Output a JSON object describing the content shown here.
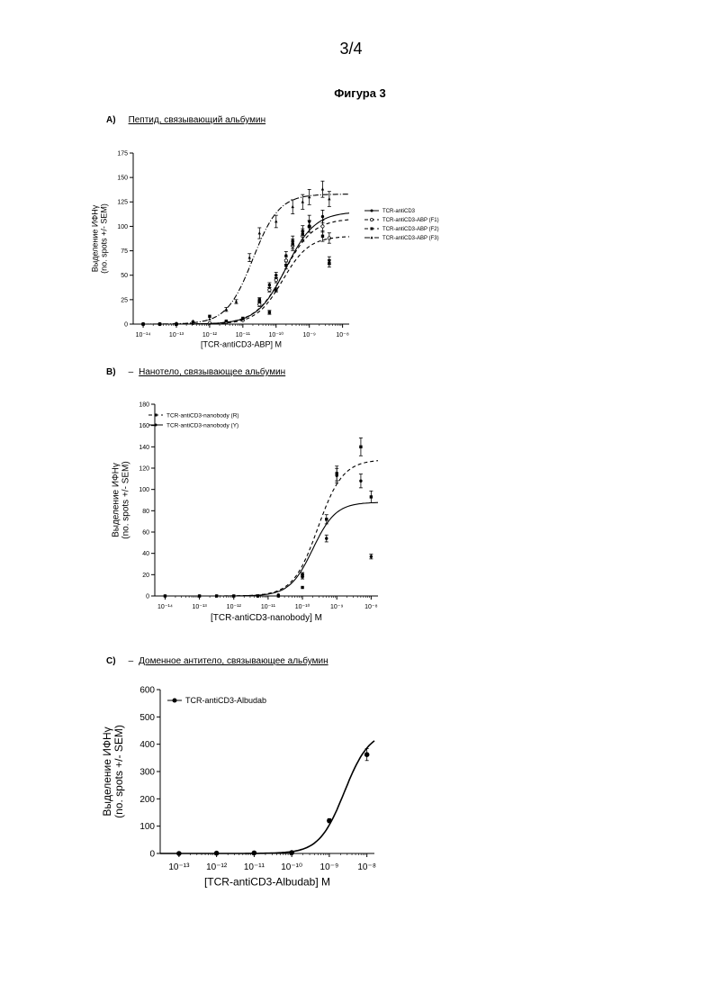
{
  "page_number": "3/4",
  "figure_title": "Фигура 3",
  "chart_data": [
    {
      "panel": "A)",
      "panel_title": "Пептид, связывающий альбумин",
      "type": "scatter",
      "xscale": "log",
      "xlabel": "[TCR-antiCD3-ABP] M",
      "ylabel": "Выделение ИФНγ",
      "ylabel2": "(no. spots +/- SEM)",
      "xlim_exp": [
        -14.3,
        -7.8
      ],
      "ylim": [
        0,
        175
      ],
      "yticks": [
        "0",
        "25",
        "50",
        "75",
        "100",
        "125",
        "150",
        "175"
      ],
      "xticks": [
        {
          "exp": -14,
          "label": "10⁻¹⁴"
        },
        {
          "exp": -13,
          "label": "10⁻¹³"
        },
        {
          "exp": -12,
          "label": "10⁻¹²"
        },
        {
          "exp": -11,
          "label": "10⁻¹¹"
        },
        {
          "exp": -10,
          "label": "10⁻¹⁰"
        },
        {
          "exp": -9,
          "label": "10⁻⁹"
        },
        {
          "exp": -8,
          "label": "10⁻⁸"
        }
      ],
      "legend_position": "right",
      "series": [
        {
          "name": "TCR-antiCD3",
          "style": "solid",
          "marker": "dot",
          "bottom": 0,
          "top": 115,
          "logEC50": -9.7,
          "hill": 1.0,
          "points": [
            [
              -14,
              0
            ],
            [
              -13.5,
              0
            ],
            [
              -13,
              0
            ],
            [
              -12.5,
              1
            ],
            [
              -12,
              1
            ],
            [
              -11.5,
              3
            ],
            [
              -11,
              5
            ],
            [
              -10.5,
              22
            ],
            [
              -10.2,
              40
            ],
            [
              -10,
              50
            ],
            [
              -9.7,
              70
            ],
            [
              -9.5,
              85
            ],
            [
              -9.2,
              95
            ],
            [
              -9,
              105
            ],
            [
              -8.6,
              110
            ],
            [
              -8.4,
              65
            ]
          ]
        },
        {
          "name": "TCR-antiCD3-ABP (F1)",
          "style": "dashed",
          "marker": "circle",
          "bottom": 0,
          "top": 108,
          "logEC50": -9.75,
          "hill": 1.0,
          "points": [
            [
              -14,
              0
            ],
            [
              -13.5,
              0
            ],
            [
              -13,
              0
            ],
            [
              -12.5,
              1
            ],
            [
              -12,
              1
            ],
            [
              -11.5,
              2
            ],
            [
              -11,
              4
            ],
            [
              -10.5,
              20
            ],
            [
              -10.2,
              35
            ],
            [
              -10,
              45
            ],
            [
              -9.7,
              65
            ],
            [
              -9.5,
              80
            ],
            [
              -9.2,
              90
            ],
            [
              -9,
              100
            ],
            [
              -8.6,
              100
            ],
            [
              -8.4,
              88
            ]
          ]
        },
        {
          "name": "TCR-antiCD3-ABP (F2)",
          "style": "dashed",
          "marker": "square",
          "bottom": 0,
          "top": 90,
          "logEC50": -9.8,
          "hill": 1.1,
          "points": [
            [
              -14,
              0
            ],
            [
              -13.5,
              0
            ],
            [
              -13,
              0
            ],
            [
              -12.5,
              2
            ],
            [
              -12,
              8
            ],
            [
              -11.5,
              3
            ],
            [
              -11,
              6
            ],
            [
              -10.5,
              25
            ],
            [
              -10.2,
              12
            ],
            [
              -10,
              35
            ],
            [
              -9.7,
              60
            ],
            [
              -9.5,
              82
            ],
            [
              -9.2,
              92
            ],
            [
              -9,
              100
            ],
            [
              -8.6,
              90
            ],
            [
              -8.4,
              62
            ]
          ]
        },
        {
          "name": "TCR-antiCD3-ABP (F3)",
          "style": "dashdot",
          "marker": "triangle",
          "bottom": 0,
          "top": 133,
          "logEC50": -10.7,
          "hill": 1.1,
          "points": [
            [
              -14,
              0
            ],
            [
              -13.5,
              0
            ],
            [
              -13,
              1
            ],
            [
              -12.5,
              3
            ],
            [
              -12,
              5
            ],
            [
              -11.5,
              15
            ],
            [
              -11.2,
              23
            ],
            [
              -10.8,
              68
            ],
            [
              -10.5,
              93
            ],
            [
              -10,
              105
            ],
            [
              -9.5,
              120
            ],
            [
              -9.2,
              125
            ],
            [
              -9,
              130
            ],
            [
              -8.6,
              138
            ],
            [
              -8.4,
              128
            ]
          ]
        }
      ]
    },
    {
      "panel": "B)",
      "panel_title": "Нанотело, связывающее альбумин",
      "type": "scatter",
      "xscale": "log",
      "xlabel": "[TCR-antiCD3-nanobody] M",
      "ylabel": "Выделение ИФНγ",
      "ylabel2": "(no. spots +/- SEM)",
      "xlim_exp": [
        -14.3,
        -7.8
      ],
      "ylim": [
        0,
        180
      ],
      "yticks": [
        "0",
        "20",
        "40",
        "60",
        "80",
        "100",
        "120",
        "140",
        "160",
        "180"
      ],
      "xticks": [
        {
          "exp": -14,
          "label": "10⁻¹⁴"
        },
        {
          "exp": -13,
          "label": "10⁻¹³"
        },
        {
          "exp": -12,
          "label": "10⁻¹²"
        },
        {
          "exp": -11,
          "label": "10⁻¹¹"
        },
        {
          "exp": -10,
          "label": "10⁻¹⁰"
        },
        {
          "exp": -9,
          "label": "10⁻⁹"
        },
        {
          "exp": -8,
          "label": "10⁻⁸"
        }
      ],
      "legend_position": "top-left",
      "series": [
        {
          "name": "TCR-antiCD3-nanobody (R)",
          "style": "dashed",
          "marker": "square",
          "bottom": 0,
          "top": 128,
          "logEC50": -9.55,
          "hill": 1.2,
          "points": [
            [
              -14,
              0
            ],
            [
              -13,
              0
            ],
            [
              -12.5,
              0
            ],
            [
              -12,
              0
            ],
            [
              -11.3,
              0
            ],
            [
              -10.7,
              0
            ],
            [
              -10,
              20
            ],
            [
              -10,
              8
            ],
            [
              -9.3,
              72
            ],
            [
              -9,
              115
            ],
            [
              -8.3,
              140
            ],
            [
              -8,
              93
            ]
          ]
        },
        {
          "name": "TCR-antiCD3-nanobody (Y)",
          "style": "solid",
          "marker": "dot",
          "bottom": 0,
          "top": 88,
          "logEC50": -9.7,
          "hill": 1.3,
          "points": [
            [
              -14,
              0
            ],
            [
              -13,
              0
            ],
            [
              -12.5,
              0
            ],
            [
              -12,
              0
            ],
            [
              -11.3,
              0
            ],
            [
              -10.7,
              1
            ],
            [
              -10,
              18
            ],
            [
              -9.3,
              54
            ],
            [
              -9,
              113
            ],
            [
              -8.3,
              108
            ],
            [
              -8,
              37
            ]
          ]
        }
      ]
    },
    {
      "panel": "C)",
      "panel_title": "Доменное антитело, связывающее альбумин",
      "type": "scatter",
      "xscale": "log",
      "xlabel": "[TCR-antiCD3-Albudab] M",
      "ylabel": "Выделение ИФНγ",
      "ylabel2": "(no. spots +/- SEM)",
      "xlim_exp": [
        -13.5,
        -7.8
      ],
      "ylim": [
        0,
        600
      ],
      "yticks": [
        "0",
        "100",
        "200",
        "300",
        "400",
        "500",
        "600"
      ],
      "xticks": [
        {
          "exp": -13,
          "label": "10⁻¹³"
        },
        {
          "exp": -12,
          "label": "10⁻¹²"
        },
        {
          "exp": -11,
          "label": "10⁻¹¹"
        },
        {
          "exp": -10,
          "label": "10⁻¹⁰"
        },
        {
          "exp": -9,
          "label": "10⁻⁹"
        },
        {
          "exp": -8,
          "label": "10⁻⁸"
        }
      ],
      "legend_position": "top-left",
      "series": [
        {
          "name": "TCR-antiCD3-Albudab",
          "style": "solid",
          "marker": "dot",
          "bottom": 0,
          "top": 450,
          "logEC50": -8.6,
          "hill": 1.3,
          "points": [
            [
              -13,
              0
            ],
            [
              -12,
              1
            ],
            [
              -11,
              2
            ],
            [
              -10,
              3
            ],
            [
              -9,
              120
            ],
            [
              -8,
              362
            ]
          ]
        }
      ]
    }
  ]
}
